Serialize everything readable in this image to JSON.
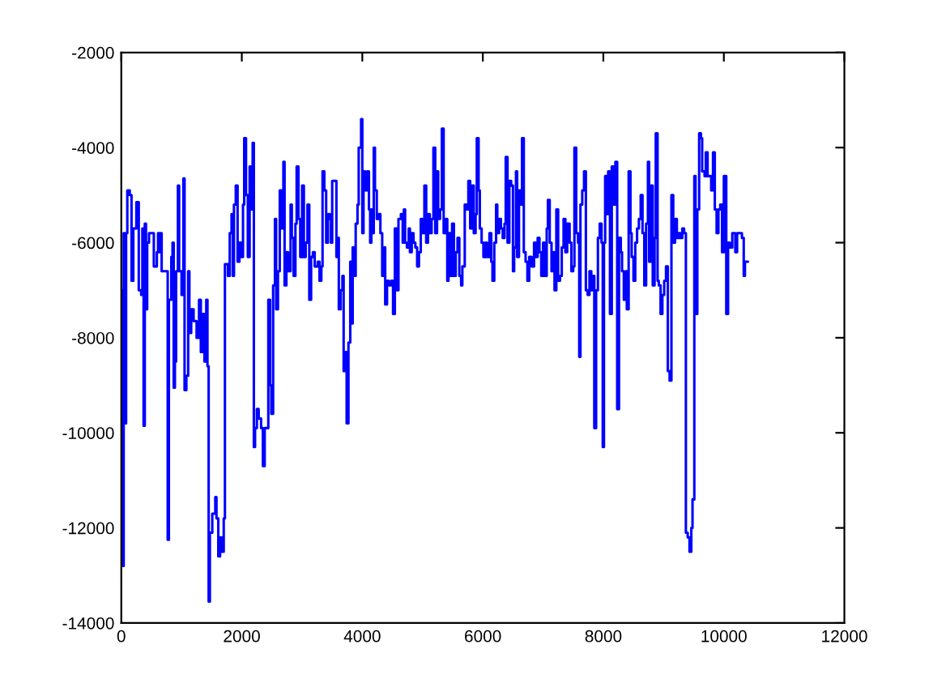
{
  "chart_data": {
    "type": "step",
    "color": "#0000ff",
    "grid": false,
    "xlim": [
      0,
      12000
    ],
    "ylim": [
      -14000,
      -2000
    ],
    "xticks": [
      0,
      2000,
      4000,
      6000,
      8000,
      10000,
      12000
    ],
    "yticks": [
      -14000,
      -12000,
      -10000,
      -8000,
      -6000,
      -4000,
      -2000
    ],
    "x": [
      0,
      20,
      40,
      60,
      80,
      100,
      140,
      170,
      200,
      250,
      290,
      330,
      350,
      370,
      390,
      410,
      430,
      460,
      540,
      590,
      610,
      630,
      650,
      670,
      770,
      790,
      830,
      850,
      870,
      890,
      910,
      940,
      960,
      1000,
      1030,
      1050,
      1080,
      1110,
      1130,
      1160,
      1200,
      1250,
      1290,
      1320,
      1350,
      1380,
      1410,
      1430,
      1450,
      1470,
      1510,
      1560,
      1580,
      1610,
      1640,
      1670,
      1700,
      1720,
      1770,
      1800,
      1830,
      1850,
      1870,
      1900,
      1930,
      1960,
      1990,
      2020,
      2040,
      2070,
      2100,
      2130,
      2160,
      2180,
      2200,
      2220,
      2250,
      2280,
      2320,
      2350,
      2380,
      2440,
      2470,
      2490,
      2520,
      2550,
      2570,
      2600,
      2630,
      2660,
      2690,
      2710,
      2740,
      2770,
      2810,
      2830,
      2860,
      2890,
      2910,
      2940,
      2970,
      3000,
      3030,
      3060,
      3090,
      3120,
      3150,
      3180,
      3210,
      3260,
      3290,
      3320,
      3340,
      3370,
      3400,
      3430,
      3460,
      3480,
      3500,
      3570,
      3590,
      3610,
      3640,
      3670,
      3690,
      3710,
      3740,
      3770,
      3800,
      3820,
      3840,
      3870,
      3890,
      3920,
      3940,
      3980,
      4000,
      4020,
      4050,
      4080,
      4110,
      4130,
      4150,
      4170,
      4190,
      4210,
      4240,
      4270,
      4300,
      4330,
      4360,
      4380,
      4410,
      4440,
      4480,
      4510,
      4540,
      4570,
      4600,
      4640,
      4670,
      4690,
      4710,
      4740,
      4770,
      4790,
      4820,
      4850,
      4880,
      4910,
      4940,
      4970,
      5000,
      5030,
      5060,
      5090,
      5120,
      5150,
      5180,
      5210,
      5240,
      5260,
      5290,
      5320,
      5350,
      5380,
      5410,
      5430,
      5460,
      5490,
      5520,
      5550,
      5580,
      5610,
      5640,
      5660,
      5700,
      5730,
      5760,
      5790,
      5820,
      5850,
      5880,
      5900,
      5930,
      5950,
      5980,
      6010,
      6040,
      6070,
      6110,
      6140,
      6160,
      6190,
      6220,
      6240,
      6270,
      6300,
      6330,
      6360,
      6380,
      6410,
      6440,
      6470,
      6500,
      6520,
      6550,
      6570,
      6600,
      6630,
      6650,
      6680,
      6710,
      6740,
      6770,
      6810,
      6850,
      6880,
      6910,
      6940,
      6970,
      7000,
      7030,
      7060,
      7080,
      7110,
      7140,
      7170,
      7190,
      7220,
      7250,
      7280,
      7310,
      7340,
      7370,
      7400,
      7440,
      7470,
      7500,
      7520,
      7550,
      7580,
      7600,
      7620,
      7650,
      7680,
      7710,
      7740,
      7770,
      7800,
      7830,
      7850,
      7880,
      7910,
      7940,
      7970,
      7990,
      8010,
      8030,
      8060,
      8080,
      8110,
      8140,
      8170,
      8200,
      8230,
      8260,
      8290,
      8310,
      8340,
      8370,
      8390,
      8420,
      8450,
      8470,
      8500,
      8530,
      8560,
      8590,
      8620,
      8650,
      8680,
      8710,
      8740,
      8760,
      8790,
      8820,
      8850,
      8870,
      8900,
      8920,
      8950,
      8980,
      9010,
      9040,
      9070,
      9100,
      9130,
      9160,
      9190,
      9220,
      9250,
      9280,
      9310,
      9340,
      9370,
      9400,
      9430,
      9460,
      9480,
      9510,
      9530,
      9560,
      9590,
      9620,
      9640,
      9680,
      9700,
      9730,
      9790,
      9820,
      9850,
      9880,
      9910,
      9940,
      9970,
      10000,
      10040,
      10070,
      10100,
      10140,
      10190,
      10220,
      10300,
      10330,
      10350,
      10400
    ],
    "values": [
      -7000,
      -12800,
      -5800,
      -9800,
      -5800,
      -4900,
      -5000,
      -6800,
      -5700,
      -5150,
      -7000,
      -7100,
      -5700,
      -9850,
      -5600,
      -7400,
      -6000,
      -5800,
      -6500,
      -6200,
      -5800,
      -6200,
      -5800,
      -6600,
      -12250,
      -7200,
      -6300,
      -6000,
      -9050,
      -8500,
      -6600,
      -4800,
      -6600,
      -7100,
      -4650,
      -9100,
      -8800,
      -6600,
      -7900,
      -7400,
      -7650,
      -8000,
      -7200,
      -8300,
      -7500,
      -8500,
      -7200,
      -8600,
      -13550,
      -12100,
      -11700,
      -11350,
      -11800,
      -12600,
      -12200,
      -12500,
      -11800,
      -6450,
      -6700,
      -5800,
      -5400,
      -6700,
      -5200,
      -4800,
      -6400,
      -6000,
      -6300,
      -5200,
      -3800,
      -5000,
      -6300,
      -4400,
      -5300,
      -3900,
      -10300,
      -9900,
      -9500,
      -9700,
      -9900,
      -10700,
      -9900,
      -7200,
      -9000,
      -9600,
      -6900,
      -5500,
      -7400,
      -6600,
      -4900,
      -5700,
      -4300,
      -6900,
      -6200,
      -6600,
      -5200,
      -5900,
      -6700,
      -5600,
      -4400,
      -5500,
      -6300,
      -4800,
      -6300,
      -6000,
      -5200,
      -7200,
      -6300,
      -6200,
      -6500,
      -6400,
      -6800,
      -6500,
      -4500,
      -4900,
      -6000,
      -5400,
      -5500,
      -6000,
      -4700,
      -6300,
      -5900,
      -7400,
      -7000,
      -6700,
      -8700,
      -8300,
      -9800,
      -8100,
      -6400,
      -7700,
      -6100,
      -6700,
      -5600,
      -5200,
      -4000,
      -3400,
      -5800,
      -4500,
      -4900,
      -4500,
      -5300,
      -6000,
      -5300,
      -5800,
      -4000,
      -4900,
      -5500,
      -5400,
      -5800,
      -6700,
      -6100,
      -7300,
      -6800,
      -6900,
      -6800,
      -7500,
      -5700,
      -7000,
      -5500,
      -5400,
      -6000,
      -5300,
      -6000,
      -6100,
      -5700,
      -6200,
      -5800,
      -6000,
      -6100,
      -6500,
      -6200,
      -5500,
      -5800,
      -4800,
      -6000,
      -5400,
      -5800,
      -5500,
      -4000,
      -5800,
      -4500,
      -5500,
      -5300,
      -3600,
      -5800,
      -5500,
      -6800,
      -5800,
      -6700,
      -5600,
      -6700,
      -6200,
      -5900,
      -6700,
      -6900,
      -6500,
      -5200,
      -5300,
      -4700,
      -5700,
      -4800,
      -5800,
      -5400,
      -3800,
      -4900,
      -5700,
      -6000,
      -6300,
      -6000,
      -6300,
      -5800,
      -6400,
      -6800,
      -6000,
      -5200,
      -5800,
      -5500,
      -5700,
      -5900,
      -5600,
      -4200,
      -6000,
      -4700,
      -4800,
      -6600,
      -6100,
      -4500,
      -6300,
      -4900,
      -5200,
      -3800,
      -6200,
      -6400,
      -6800,
      -6300,
      -6500,
      -6000,
      -6300,
      -5900,
      -6200,
      -6700,
      -6000,
      -6700,
      -5700,
      -5100,
      -6000,
      -6600,
      -6200,
      -7000,
      -5300,
      -6800,
      -6700,
      -6100,
      -5500,
      -6200,
      -5600,
      -6000,
      -6600,
      -6500,
      -4000,
      -5800,
      -6000,
      -8400,
      -5200,
      -4900,
      -4500,
      -7000,
      -7100,
      -6600,
      -7000,
      -6700,
      -9900,
      -7000,
      -5900,
      -5600,
      -6000,
      -10300,
      -6000,
      -4600,
      -5400,
      -4500,
      -7500,
      -4400,
      -5200,
      -4300,
      -9500,
      -5900,
      -6200,
      -6600,
      -7200,
      -6600,
      -7400,
      -4500,
      -5800,
      -6300,
      -6800,
      -6000,
      -5700,
      -5500,
      -5000,
      -5800,
      -6900,
      -5600,
      -4300,
      -6400,
      -4800,
      -6900,
      -5900,
      -3700,
      -6800,
      -6900,
      -7500,
      -7100,
      -6800,
      -6500,
      -8700,
      -8900,
      -5000,
      -6000,
      -5500,
      -5900,
      -5800,
      -5900,
      -5700,
      -5800,
      -12100,
      -12200,
      -12500,
      -12000,
      -11400,
      -4600,
      -7500,
      -5300,
      -3700,
      -3800,
      -4500,
      -4600,
      -4100,
      -4600,
      -4900,
      -4100,
      -5300,
      -5800,
      -5300,
      -5200,
      -6200,
      -4600,
      -7500,
      -6000,
      -6100,
      -5800,
      -6200,
      -5800,
      -5900,
      -6700,
      -6400,
      -6400
    ]
  }
}
